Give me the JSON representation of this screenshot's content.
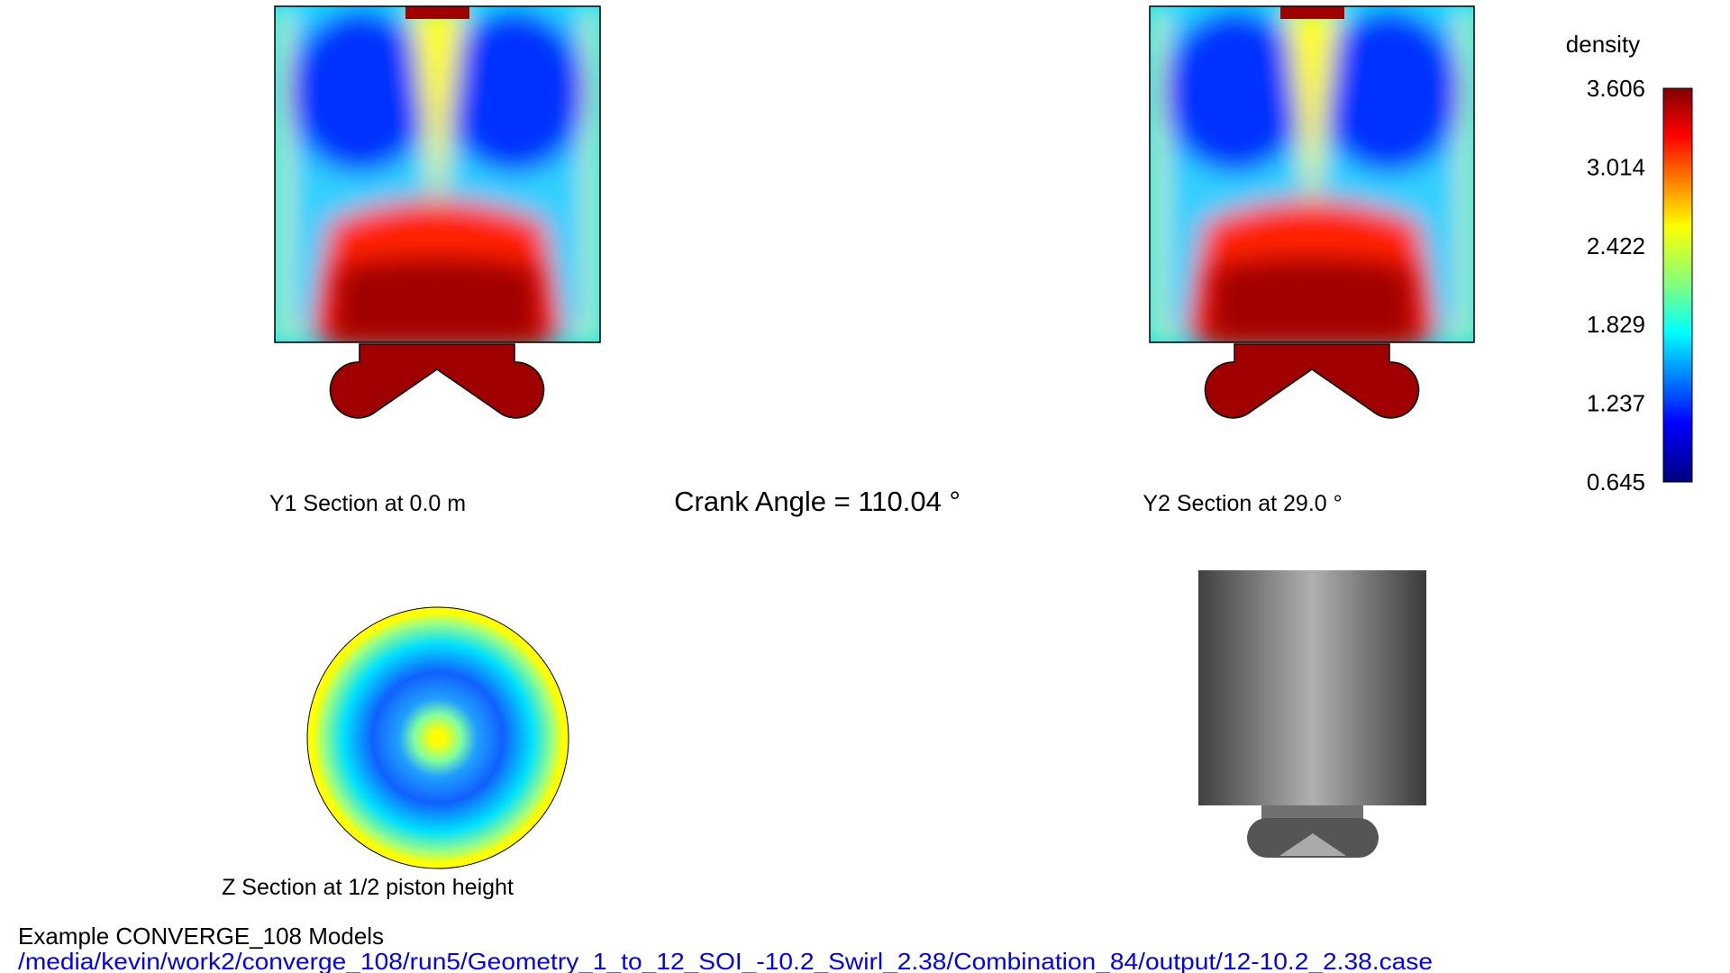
{
  "views": {
    "y1_label": "Y1 Section at 0.0 m",
    "crank_angle": "Crank Angle = 110.04 °",
    "y2_label": "Y2 Section at 29.0 °",
    "z_label": "Z Section at 1/2 piston height"
  },
  "colorbar": {
    "title": "density",
    "ticks": [
      "3.606",
      "3.014",
      "2.422",
      "1.829",
      "1.237",
      "0.645"
    ]
  },
  "footer": {
    "title": "Example CONVERGE_108 Models",
    "path": "/media/kevin/work2/converge_108/run5/Geometry_1_to_12_SOI_-10.2_Swirl_2.38/Combination_84/output/12-10.2_2.38.case"
  }
}
